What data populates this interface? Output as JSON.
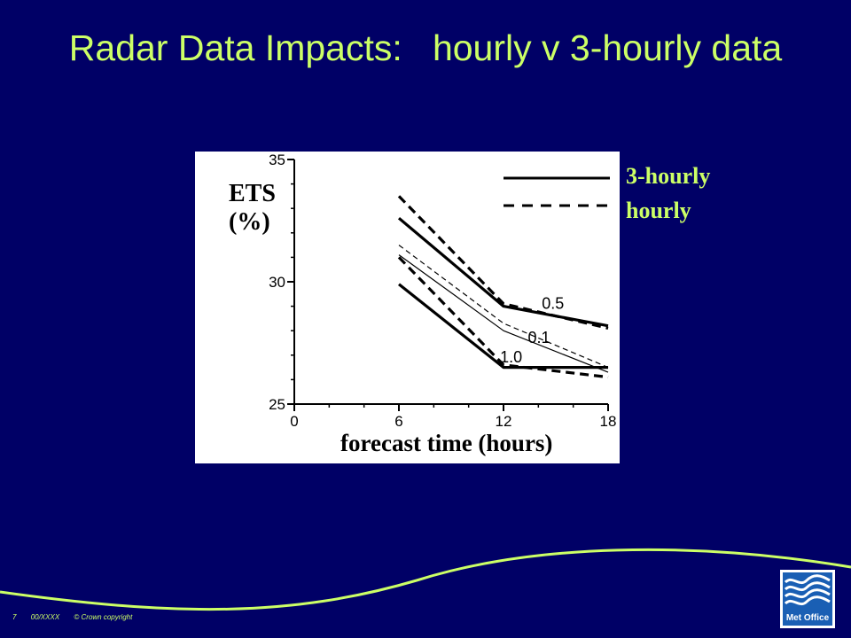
{
  "slide": {
    "title": "Radar Data Impacts:   hourly v 3-hourly data",
    "legend": [
      {
        "label": "3-hourly",
        "style": "solid"
      },
      {
        "label": "hourly",
        "style": "dashed"
      }
    ],
    "footer": {
      "page_number": "7",
      "ref": "00/XXXX",
      "copyright": "© Crown copyright"
    },
    "logo_text": "Met Office"
  },
  "colors": {
    "background": "#000066",
    "accent": "#ccff66",
    "chart_bg": "#ffffff",
    "ink": "#000000",
    "logo_blue": "#1a5fb4"
  },
  "chart_data": {
    "type": "line",
    "ylabel": "ETS\n(%)",
    "xlabel": "forecast time  (hours)",
    "xlim": [
      0,
      18
    ],
    "ylim": [
      25,
      35
    ],
    "xticks": [
      0,
      6,
      12,
      18
    ],
    "yticks": [
      25,
      30,
      35
    ],
    "series": [
      {
        "name": "0.5",
        "style": "solid-thick",
        "x": [
          6,
          12,
          18
        ],
        "y": [
          32.6,
          29.0,
          28.2
        ]
      },
      {
        "name": "0.5",
        "style": "dashed-thick",
        "x": [
          6,
          12,
          18
        ],
        "y": [
          33.5,
          29.1,
          28.1
        ]
      },
      {
        "name": "0.1",
        "style": "solid-thin",
        "x": [
          6,
          12,
          18
        ],
        "y": [
          31.1,
          28.0,
          26.3
        ]
      },
      {
        "name": "0.1",
        "style": "dashed-thin",
        "x": [
          6,
          12,
          18
        ],
        "y": [
          31.5,
          28.3,
          26.5
        ]
      },
      {
        "name": "1.0",
        "style": "solid-thick",
        "x": [
          6,
          12,
          18
        ],
        "y": [
          29.9,
          26.5,
          26.5
        ]
      },
      {
        "name": "1.0",
        "style": "dashed-thick",
        "x": [
          6,
          12,
          18
        ],
        "y": [
          31.0,
          26.6,
          26.1
        ]
      }
    ],
    "annotations": [
      {
        "text": "0.5",
        "x": 14.2,
        "y": 28.9
      },
      {
        "text": "0.1",
        "x": 13.4,
        "y": 27.5
      },
      {
        "text": "1.0",
        "x": 11.8,
        "y": 26.7
      }
    ]
  }
}
